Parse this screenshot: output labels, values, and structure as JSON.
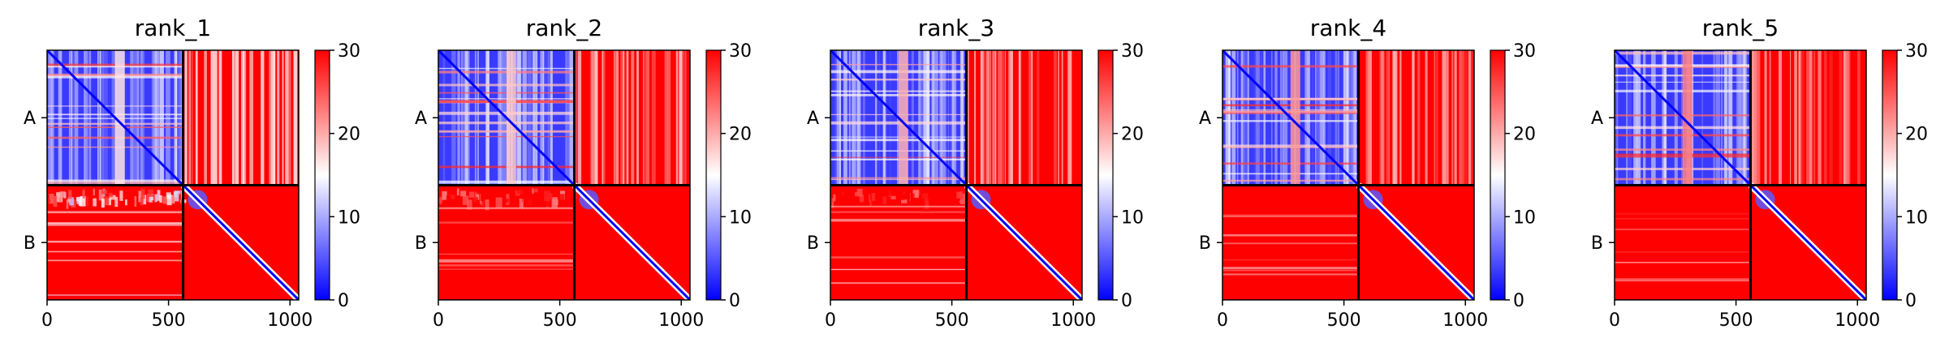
{
  "chart_data": {
    "type": "heatmap",
    "colorbar": {
      "min": 0,
      "max": 30,
      "ticks": [
        "0",
        "10",
        "20",
        "30"
      ],
      "colors": [
        "#0000ff",
        "#ffffff",
        "#ff0000"
      ]
    },
    "x_range": [
      0,
      1036
    ],
    "x_ticks": [
      "0",
      "500",
      "1000"
    ],
    "chain_break": 560,
    "y_labels": [
      "A",
      "B"
    ],
    "panels": [
      {
        "title": "rank_1",
        "ab_level": 0.82,
        "ba_level": 0.72
      },
      {
        "title": "rank_2",
        "ab_level": 0.88,
        "ba_level": 0.84
      },
      {
        "title": "rank_3",
        "ab_level": 0.92,
        "ba_level": 0.84
      },
      {
        "title": "rank_4",
        "ab_level": 0.95,
        "ba_level": 0.93
      },
      {
        "title": "rank_5",
        "ab_level": 0.97,
        "ba_level": 0.96
      }
    ]
  }
}
